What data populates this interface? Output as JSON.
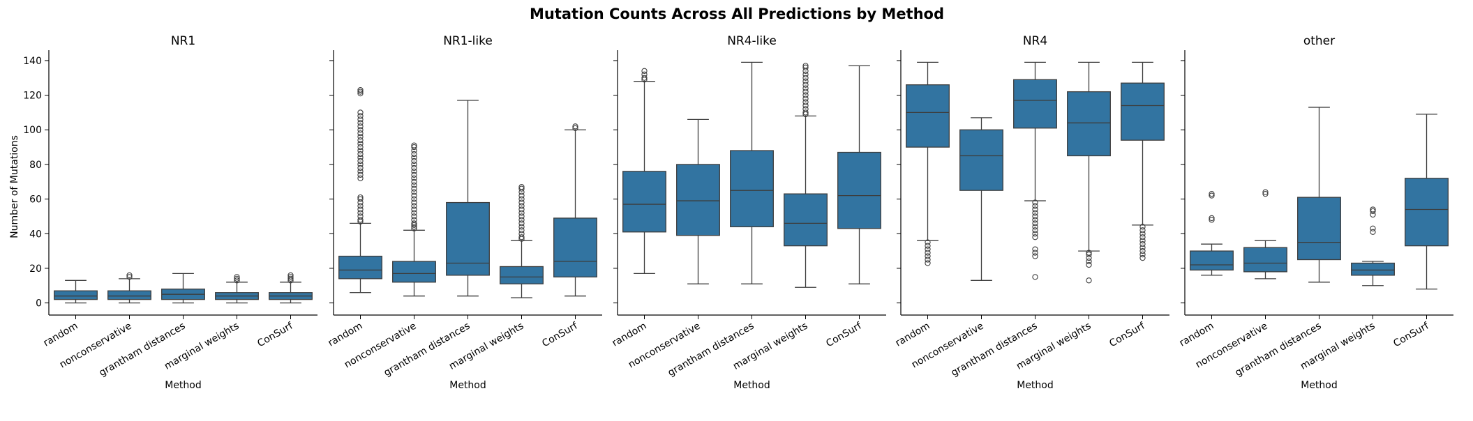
{
  "figure": {
    "title": "Mutation Counts Across All Predictions by Method",
    "ylabel": "Number of Mutations"
  },
  "chart_data": {
    "type": "box",
    "title": "Mutation Counts Across All Predictions by Method",
    "ylabel": "Number of Mutations",
    "xlabel": "Method",
    "ylim": [
      -7,
      146
    ],
    "yticks": [
      0,
      20,
      40,
      60,
      80,
      100,
      120,
      140
    ],
    "color": "#3274a1",
    "categories": [
      "random",
      "nonconservative",
      "grantham distances",
      "marginal weights",
      "ConSurf"
    ],
    "panels": [
      {
        "title": "NR1",
        "boxes": [
          {
            "min": 0,
            "q1": 2,
            "median": 4,
            "q3": 7,
            "max": 13,
            "outliers": []
          },
          {
            "min": 0,
            "q1": 2,
            "median": 4,
            "q3": 7,
            "max": 14,
            "outliers": [
              15,
              16
            ]
          },
          {
            "min": 0,
            "q1": 2,
            "median": 5,
            "q3": 8,
            "max": 17,
            "outliers": []
          },
          {
            "min": 0,
            "q1": 2,
            "median": 4,
            "q3": 6,
            "max": 12,
            "outliers": [
              13,
              14,
              15
            ]
          },
          {
            "min": 0,
            "q1": 2,
            "median": 4,
            "q3": 6,
            "max": 12,
            "outliers": [
              13,
              14,
              15,
              16
            ]
          }
        ]
      },
      {
        "title": "NR1-like",
        "boxes": [
          {
            "min": 6,
            "q1": 14,
            "median": 19,
            "q3": 27,
            "max": 46,
            "outliers": [
              47,
              48,
              50,
              52,
              54,
              56,
              58,
              60,
              61,
              72,
              74,
              76,
              78,
              80,
              82,
              84,
              86,
              88,
              90,
              92,
              94,
              96,
              98,
              100,
              102,
              104,
              106,
              108,
              110,
              121,
              122,
              123
            ]
          },
          {
            "min": 4,
            "q1": 12,
            "median": 17,
            "q3": 24,
            "max": 42,
            "outliers": [
              43,
              44,
              45,
              46,
              48,
              50,
              52,
              54,
              56,
              58,
              60,
              62,
              64,
              66,
              68,
              70,
              72,
              74,
              76,
              78,
              80,
              82,
              84,
              86,
              88,
              90,
              91
            ]
          },
          {
            "min": 4,
            "q1": 16,
            "median": 23,
            "q3": 58,
            "max": 117,
            "outliers": []
          },
          {
            "min": 3,
            "q1": 11,
            "median": 15,
            "q3": 21,
            "max": 36,
            "outliers": [
              37,
              38,
              40,
              42,
              44,
              46,
              48,
              50,
              52,
              54,
              56,
              58,
              60,
              62,
              64,
              66,
              67
            ]
          },
          {
            "min": 4,
            "q1": 15,
            "median": 24,
            "q3": 49,
            "max": 100,
            "outliers": [
              101,
              102
            ]
          }
        ]
      },
      {
        "title": "NR4-like",
        "boxes": [
          {
            "min": 17,
            "q1": 41,
            "median": 57,
            "q3": 76,
            "max": 128,
            "outliers": [
              129,
              130,
              132,
              134
            ]
          },
          {
            "min": 11,
            "q1": 39,
            "median": 59,
            "q3": 80,
            "max": 106,
            "outliers": []
          },
          {
            "min": 11,
            "q1": 44,
            "median": 65,
            "q3": 88,
            "max": 139,
            "outliers": []
          },
          {
            "min": 9,
            "q1": 33,
            "median": 46,
            "q3": 63,
            "max": 108,
            "outliers": [
              109,
              110,
              112,
              114,
              116,
              118,
              120,
              122,
              124,
              126,
              128,
              130,
              132,
              134,
              136,
              137
            ]
          },
          {
            "min": 11,
            "q1": 43,
            "median": 62,
            "q3": 87,
            "max": 137,
            "outliers": []
          }
        ]
      },
      {
        "title": "NR4",
        "boxes": [
          {
            "min": 36,
            "q1": 90,
            "median": 110,
            "q3": 126,
            "max": 139,
            "outliers": [
              23,
              25,
              27,
              29,
              31,
              33,
              35
            ]
          },
          {
            "min": 13,
            "q1": 65,
            "median": 85,
            "q3": 100,
            "max": 107,
            "outliers": []
          },
          {
            "min": 59,
            "q1": 101,
            "median": 117,
            "q3": 129,
            "max": 139,
            "outliers": [
              15,
              27,
              29,
              31,
              38,
              40,
              42,
              44,
              46,
              48,
              50,
              52,
              54,
              56,
              58
            ]
          },
          {
            "min": 30,
            "q1": 85,
            "median": 104,
            "q3": 122,
            "max": 139,
            "outliers": [
              13,
              22,
              24,
              26,
              28,
              29
            ]
          },
          {
            "min": 45,
            "q1": 94,
            "median": 114,
            "q3": 127,
            "max": 139,
            "outliers": [
              26,
              28,
              30,
              32,
              34,
              36,
              38,
              40,
              42,
              44
            ]
          }
        ]
      },
      {
        "title": "other",
        "boxes": [
          {
            "min": 16,
            "q1": 19,
            "median": 22,
            "q3": 30,
            "max": 34,
            "outliers": [
              48,
              49,
              62,
              63
            ]
          },
          {
            "min": 14,
            "q1": 18,
            "median": 23,
            "q3": 32,
            "max": 36,
            "outliers": [
              63,
              64
            ]
          },
          {
            "min": 12,
            "q1": 25,
            "median": 35,
            "q3": 61,
            "max": 113,
            "outliers": []
          },
          {
            "min": 10,
            "q1": 16,
            "median": 19,
            "q3": 23,
            "max": 24,
            "outliers": [
              41,
              43,
              51,
              53,
              54
            ]
          },
          {
            "min": 8,
            "q1": 33,
            "median": 54,
            "q3": 72,
            "max": 109,
            "outliers": []
          }
        ]
      }
    ]
  }
}
